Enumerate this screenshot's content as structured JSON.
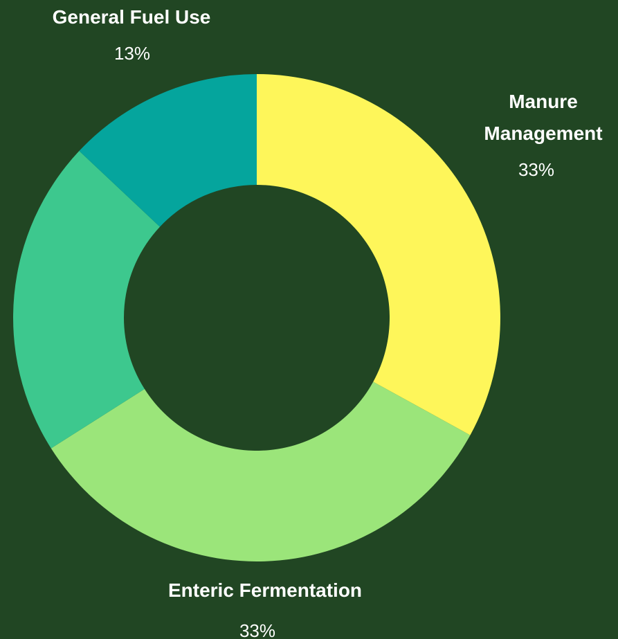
{
  "chart_data": {
    "type": "pie",
    "style": "donut",
    "title": "",
    "background": "#214623",
    "start_angle_deg": 0,
    "direction": "clockwise",
    "slices": [
      {
        "name": "Manure Management",
        "name_lines": [
          "Manure",
          "Management"
        ],
        "value": 33,
        "label": "33%",
        "color": "#FEF65A"
      },
      {
        "name": "Enteric Fermentation",
        "name_lines": [
          "Enteric Fermentation"
        ],
        "value": 33,
        "label": "33%",
        "color": "#9BE57A"
      },
      {
        "name": "",
        "name_lines": [],
        "value": 21,
        "label": "",
        "color": "#3DC88E"
      },
      {
        "name": "General Fuel Use",
        "name_lines": [
          "General Fuel Use"
        ],
        "value": 13,
        "label": "13%",
        "color": "#05A59D"
      }
    ]
  }
}
